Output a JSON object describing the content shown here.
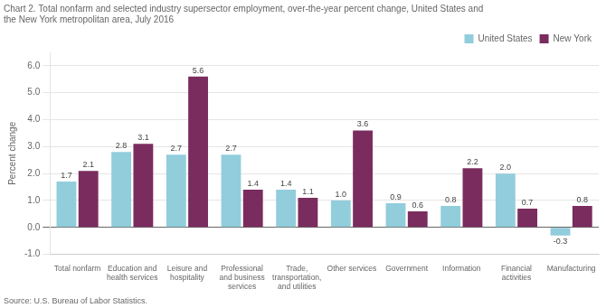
{
  "chart_data": {
    "type": "bar",
    "title": "Chart 2. Total nonfarm and selected industry supersector employment, over-the-year percent change, United States and\nthe New York metropolitan area, July 2016",
    "ylabel": "Percent change",
    "source": "Source: U.S. Bureau of Labor Statistics.",
    "categories": [
      "Total nonfarm",
      "Education and\nhealth services",
      "Leisure and\nhospitality",
      "Professional\nand business\nservices",
      "Trade,\ntransportation,\nand utilities",
      "Other services",
      "Government",
      "Information",
      "Financial\nactivities",
      "Manufacturing"
    ],
    "series": [
      {
        "name": "United States",
        "color": "#92CDDC",
        "values": [
          1.7,
          2.8,
          2.7,
          2.7,
          1.4,
          1.0,
          0.9,
          0.8,
          2.0,
          -0.3
        ],
        "value_labels": [
          "1.7",
          "2.8",
          "2.7",
          "2.7",
          "1.4",
          "1.0",
          "0.9",
          "0.8",
          "2.0",
          "-0.3"
        ]
      },
      {
        "name": "New York",
        "color": "#7B2C5E",
        "values": [
          2.1,
          3.1,
          5.6,
          1.4,
          1.1,
          3.6,
          0.6,
          2.2,
          0.7,
          0.8
        ]
      }
    ],
    "ylim": [
      -1.0,
      6.5
    ],
    "yticks": [
      {
        "value": -1.0,
        "label": "-1.0"
      },
      {
        "value": 0.0,
        "label": "0.0"
      },
      {
        "value": 1.0,
        "label": "1.0"
      },
      {
        "value": 2.0,
        "label": "2.0"
      },
      {
        "value": 3.0,
        "label": "3.0"
      },
      {
        "value": 4.0,
        "label": "4.0"
      },
      {
        "value": 5.0,
        "label": "5.0"
      },
      {
        "value": 6.0,
        "label": "6.0"
      }
    ],
    "grid": true,
    "legend": "upper right",
    "data_labels": true
  }
}
